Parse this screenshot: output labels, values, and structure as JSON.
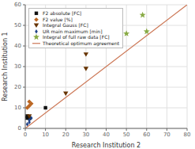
{
  "chart_data": {
    "type": "scatter",
    "x_label": "Research Institution 2",
    "y_label": "Research Institution 1",
    "xlim": [
      0,
      80
    ],
    "ylim": [
      0,
      60
    ],
    "xticks": [
      0,
      10,
      20,
      30,
      40,
      50,
      60,
      70,
      80
    ],
    "yticks": [
      0,
      10,
      20,
      30,
      40,
      50,
      60
    ],
    "grid": true,
    "legend": "upper left",
    "series": [
      {
        "name": "F2 absolute [FC]",
        "type": "scatter",
        "color": "#111111",
        "marker": "square",
        "x": [
          1,
          1,
          2,
          10
        ],
        "values": [
          5,
          6,
          5,
          10
        ]
      },
      {
        "name": "F2 value [%]",
        "type": "scatter",
        "color": "#bb6622",
        "marker": "diamond",
        "x": [
          1,
          2,
          2,
          3
        ],
        "values": [
          10,
          11,
          13,
          12
        ]
      },
      {
        "name": "Integral Gauss [FC]",
        "type": "scatter",
        "color": "#663300",
        "marker": "triangle_down",
        "x": [
          2,
          20,
          30,
          30
        ],
        "values": [
          6,
          17,
          36,
          29
        ]
      },
      {
        "name": "UR main maximum [min]",
        "type": "scatter",
        "color": "#224488",
        "marker": "thin_diamond",
        "x": [
          1,
          2,
          2,
          3
        ],
        "values": [
          2,
          3,
          4,
          5
        ]
      },
      {
        "name": "Integral of full raw data [FC]",
        "type": "scatter",
        "color": "#88aa44",
        "marker": "star",
        "x": [
          50,
          58,
          60
        ],
        "values": [
          46,
          55,
          47
        ]
      },
      {
        "name": "Theoretical optimum agreement",
        "type": "line",
        "color": "#cc7755",
        "line_style": "solid",
        "x": [
          0,
          80
        ],
        "values": [
          0,
          60
        ]
      }
    ]
  }
}
